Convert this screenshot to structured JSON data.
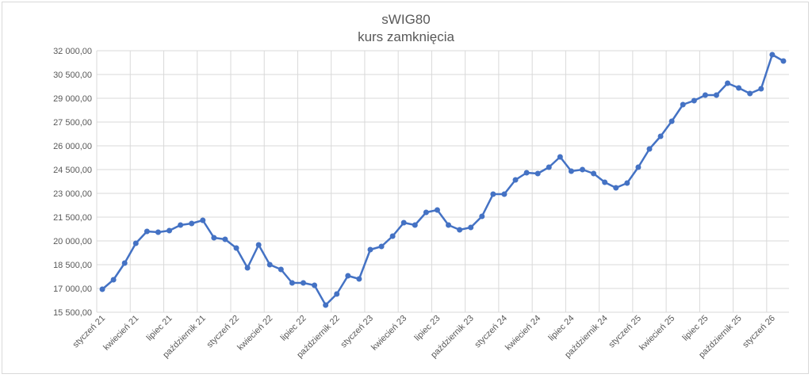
{
  "chart_data": {
    "type": "line",
    "title": "sWIG80",
    "subtitle": "kurs zamknięcia",
    "xlabel": "",
    "ylabel": "",
    "ylim": [
      15500,
      32000
    ],
    "y_ticks": [
      "15 500,00",
      "17 000,00",
      "18 500,00",
      "20 000,00",
      "21 500,00",
      "23 000,00",
      "24 500,00",
      "26 000,00",
      "27 500,00",
      "29 000,00",
      "30 500,00",
      "32 000,00"
    ],
    "x_tick_labels": [
      "styczeń 21",
      "kwiecień 21",
      "lipiec 21",
      "październik 21",
      "styczeń 22",
      "kwiecień 22",
      "lipiec 22",
      "październik 22",
      "styczeń 23",
      "kwiecień 23",
      "lipiec 23",
      "październik 23",
      "styczeń 24",
      "kwiecień 24",
      "lipiec 24",
      "październik 24",
      "styczeń 25",
      "kwiecień 25",
      "lipiec 25",
      "październik 25",
      "styczeń 26"
    ],
    "x_tick_every": 3,
    "grid": true,
    "legend": "none",
    "series": [
      {
        "color": "#4472C4",
        "values": [
          16950,
          17550,
          18600,
          19850,
          20600,
          20550,
          20650,
          21000,
          21100,
          21300,
          20200,
          20100,
          19550,
          18300,
          19750,
          18500,
          18200,
          17350,
          17350,
          17200,
          15950,
          16650,
          17800,
          17600,
          19450,
          19650,
          20300,
          21150,
          21000,
          21800,
          21950,
          21000,
          20700,
          20850,
          21550,
          22950,
          22950,
          23850,
          24300,
          24250,
          24650,
          25300,
          24400,
          24500,
          24250,
          23700,
          23350,
          23650,
          24650,
          25800,
          26600,
          27550,
          28600,
          28850,
          29200,
          29200,
          29950,
          29650,
          29300,
          29600,
          31750,
          31350
        ]
      }
    ]
  }
}
